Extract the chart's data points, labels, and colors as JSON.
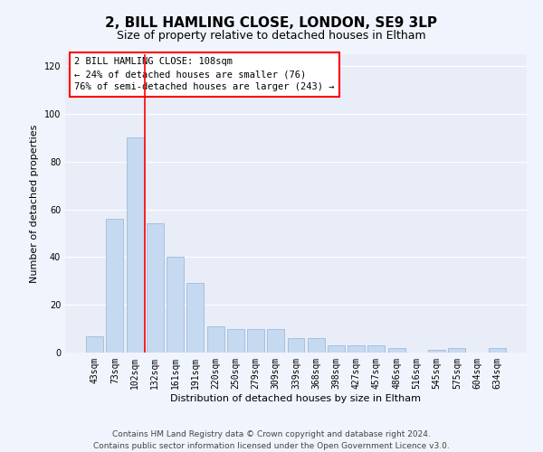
{
  "title": "2, BILL HAMLING CLOSE, LONDON, SE9 3LP",
  "subtitle": "Size of property relative to detached houses in Eltham",
  "xlabel": "Distribution of detached houses by size in Eltham",
  "ylabel": "Number of detached properties",
  "categories": [
    "43sqm",
    "73sqm",
    "102sqm",
    "132sqm",
    "161sqm",
    "191sqm",
    "220sqm",
    "250sqm",
    "279sqm",
    "309sqm",
    "339sqm",
    "368sqm",
    "398sqm",
    "427sqm",
    "457sqm",
    "486sqm",
    "516sqm",
    "545sqm",
    "575sqm",
    "604sqm",
    "634sqm"
  ],
  "values": [
    7,
    56,
    90,
    54,
    40,
    29,
    11,
    10,
    10,
    10,
    6,
    6,
    3,
    3,
    3,
    2,
    0,
    1,
    2,
    0,
    2
  ],
  "bar_color": "#c5d9f0",
  "bar_edge_color": "#a0bcd8",
  "ylim": [
    0,
    125
  ],
  "yticks": [
    0,
    20,
    40,
    60,
    80,
    100,
    120
  ],
  "vline_x_index": 2.5,
  "property_label": "2 BILL HAMLING CLOSE: 108sqm",
  "annotation_line1": "← 24% of detached houses are smaller (76)",
  "annotation_line2": "76% of semi-detached houses are larger (243) →",
  "footer_line1": "Contains HM Land Registry data © Crown copyright and database right 2024.",
  "footer_line2": "Contains public sector information licensed under the Open Government Licence v3.0.",
  "fig_bg": "#f0f4fc",
  "ax_bg": "#e8edf8",
  "grid_color": "#ffffff",
  "title_fontsize": 11,
  "subtitle_fontsize": 9,
  "axis_label_fontsize": 8,
  "tick_fontsize": 7,
  "footer_fontsize": 6.5,
  "annot_fontsize": 7.5
}
